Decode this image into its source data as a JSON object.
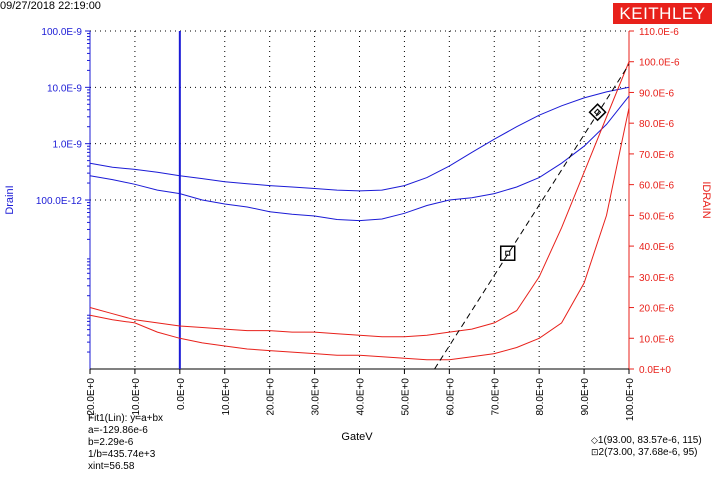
{
  "header": {
    "timestamp": "09/27/2018 22:19:00",
    "brand": "KEITHLEY"
  },
  "colors": {
    "left_axis": "#1b1bd6",
    "right_axis": "#e8211b",
    "brand": "#e8211b",
    "fit_line": "#000000"
  },
  "chart_data": {
    "type": "line",
    "title": "",
    "xlabel": "GateV",
    "ylabel_left": "DrainI",
    "ylabel_right": "IDRAIN",
    "x_range": [
      -20,
      100
    ],
    "x_ticks": [
      "-20.0E+0",
      "-10.0E+0",
      "0.0E+0",
      "10.0E+0",
      "20.0E+0",
      "30.0E+0",
      "40.0E+0",
      "50.0E+0",
      "60.0E+0",
      "70.0E+0",
      "80.0E+0",
      "90.0E+0",
      "100.0E+0"
    ],
    "left_axis_scale": "log",
    "left_axis_range": [
      1e-13,
      1e-07
    ],
    "left_ticks": [
      "100.0E-9",
      "10.0E-9",
      "1.0E-9",
      "100.0E-12"
    ],
    "right_axis_range": [
      0,
      0.00011
    ],
    "right_ticks": [
      "0.0E+0",
      "10.0E-6",
      "20.0E-6",
      "30.0E-6",
      "40.0E-6",
      "50.0E-6",
      "60.0E-6",
      "70.0E-6",
      "80.0E-6",
      "90.0E-6",
      "100.0E-6",
      "110.0E-6"
    ],
    "grid": true,
    "series": [
      {
        "axis": "left",
        "color": "#1b1bd6",
        "x": [
          -20,
          -15,
          -10,
          -5,
          0,
          5,
          10,
          15,
          20,
          25,
          30,
          35,
          40,
          45,
          50,
          55,
          60,
          65,
          70,
          75,
          80,
          85,
          90,
          95,
          100
        ],
        "y": [
          4.5e-10,
          3.8e-10,
          3.5e-10,
          3.1e-10,
          2.7e-10,
          2.4e-10,
          2.1e-10,
          1.95e-10,
          1.8e-10,
          1.7e-10,
          1.6e-10,
          1.5e-10,
          1.45e-10,
          1.5e-10,
          1.8e-10,
          2.5e-10,
          4e-10,
          7e-10,
          1.2e-09,
          2e-09,
          3.2e-09,
          4.7e-09,
          6.5e-09,
          8.3e-09,
          1e-08
        ]
      },
      {
        "axis": "left",
        "color": "#1b1bd6",
        "x": [
          -20,
          -15,
          -10,
          -5,
          0,
          5,
          10,
          15,
          20,
          25,
          30,
          35,
          40,
          45,
          50,
          55,
          60,
          65,
          70,
          75,
          80,
          85,
          90,
          95,
          100
        ],
        "y": [
          2.7e-10,
          2.3e-10,
          1.9e-10,
          1.5e-10,
          1.3e-10,
          1e-10,
          8.5e-11,
          7.5e-11,
          6.2e-11,
          5.6e-11,
          5.2e-11,
          4.5e-11,
          4.3e-11,
          4.6e-11,
          5.8e-11,
          8e-11,
          1e-10,
          1.1e-10,
          1.3e-10,
          1.7e-10,
          2.5e-10,
          4.5e-10,
          9e-10,
          2.2e-09,
          7e-09
        ]
      },
      {
        "axis": "right",
        "color": "#e8211b",
        "x": [
          -20,
          -15,
          -10,
          -5,
          0,
          5,
          10,
          15,
          20,
          25,
          30,
          35,
          40,
          45,
          50,
          55,
          60,
          65,
          70,
          75,
          80,
          85,
          90,
          95,
          100
        ],
        "y": [
          2e-05,
          1.8e-05,
          1.6e-05,
          1.5e-05,
          1.4e-05,
          1.35e-05,
          1.3e-05,
          1.25e-05,
          1.25e-05,
          1.2e-05,
          1.2e-05,
          1.15e-05,
          1.1e-05,
          1.05e-05,
          1.05e-05,
          1.1e-05,
          1.2e-05,
          1.3e-05,
          1.5e-05,
          1.9e-05,
          3e-05,
          4.6e-05,
          6.4e-05,
          8.2e-05,
          0.0001
        ]
      },
      {
        "axis": "right",
        "color": "#e8211b",
        "x": [
          -20,
          -15,
          -10,
          -5,
          0,
          5,
          10,
          15,
          20,
          25,
          30,
          35,
          40,
          45,
          50,
          55,
          60,
          65,
          70,
          75,
          80,
          85,
          90,
          95,
          100
        ],
        "y": [
          1.75e-05,
          1.6e-05,
          1.5e-05,
          1.2e-05,
          1e-05,
          8.5e-06,
          7.5e-06,
          6.5e-06,
          6e-06,
          5.5e-06,
          5e-06,
          4.5e-06,
          4.5e-06,
          4e-06,
          3.5e-06,
          3e-06,
          3e-06,
          4e-06,
          5e-06,
          7e-06,
          1e-05,
          1.5e-05,
          2.8e-05,
          5e-05,
          8.5e-05
        ]
      }
    ],
    "fit_line": {
      "axis": "right",
      "a": -0.00012986,
      "b": 2.29e-06
    },
    "cursors": [
      {
        "x": 93.0,
        "y": 8.357e-05,
        "marker": "diamond"
      },
      {
        "x": 73.0,
        "y": 3.768e-05,
        "marker": "square"
      }
    ],
    "annotations": {
      "fit_lines": [
        "Fit1(Lin):  y=a+bx",
        "a=-129.86e-6",
        "b=2.29e-6",
        "1/b=435.74e+3",
        "xint=56.58"
      ],
      "cursor_lines": [
        "1(93.00, 83.57e-6, 115)",
        "2(73.00, 37.68e-6, 95)"
      ]
    }
  }
}
